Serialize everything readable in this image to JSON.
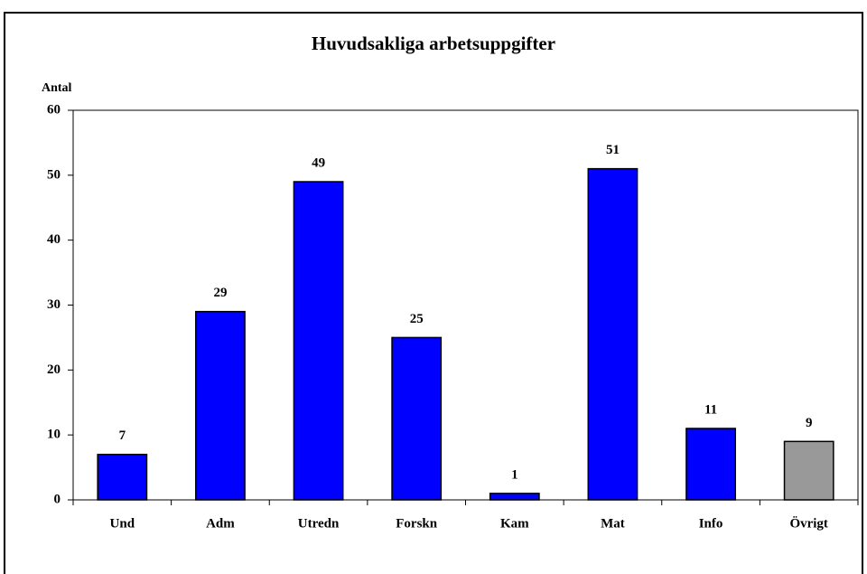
{
  "chart_data": {
    "type": "bar",
    "title": "Huvudsakliga arbetsuppgifter",
    "y_label": "Antal",
    "categories": [
      "Und",
      "Adm",
      "Utredn",
      "Forskn",
      "Kam",
      "Mat",
      "Info",
      "Övrigt"
    ],
    "values": [
      7,
      29,
      49,
      25,
      1,
      51,
      11,
      9
    ],
    "colors": [
      "#0000ff",
      "#0000ff",
      "#0000ff",
      "#0000ff",
      "#0000ff",
      "#0000ff",
      "#0000ff",
      "#999999"
    ],
    "ylim": [
      0,
      60
    ],
    "yticks": [
      0,
      10,
      20,
      30,
      40,
      50,
      60
    ],
    "grid": false
  }
}
